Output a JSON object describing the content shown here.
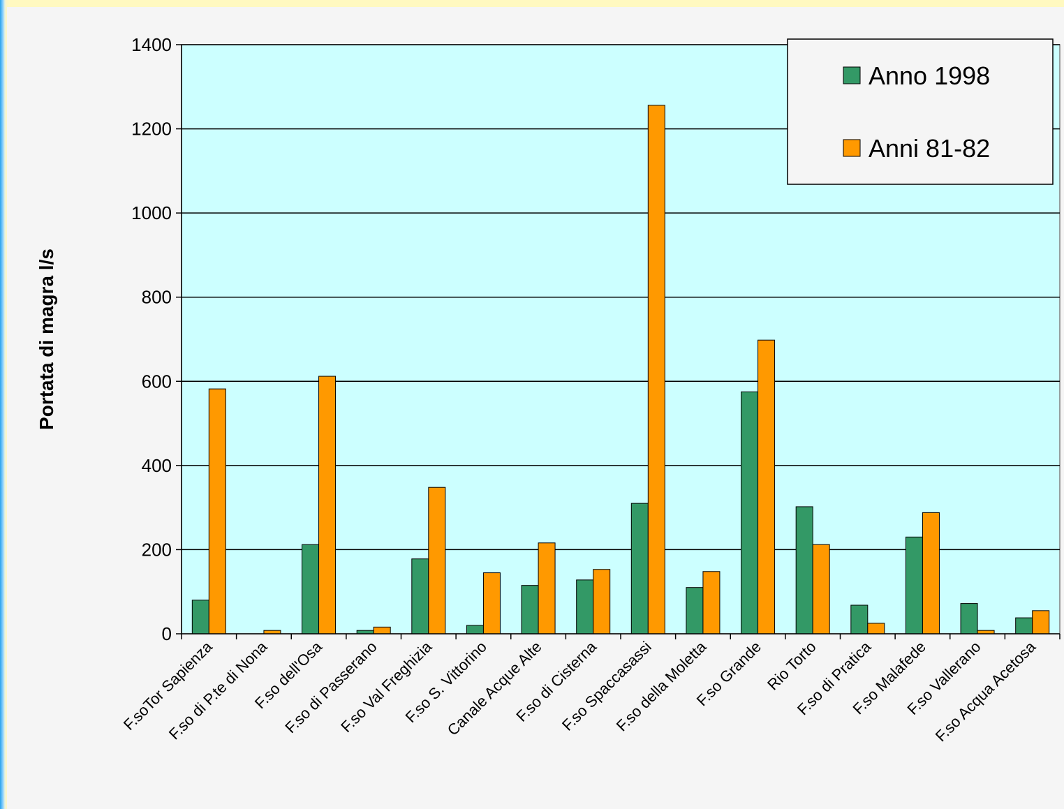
{
  "chart_data": {
    "type": "bar",
    "title": "",
    "xlabel": "",
    "ylabel": "Portata di magra l/s",
    "ylim": [
      0,
      1400
    ],
    "yticks": [
      0,
      200,
      400,
      600,
      800,
      1000,
      1200,
      1400
    ],
    "grid": true,
    "legend_position": "top-right",
    "categories": [
      "F.soTor Sapienza",
      "F.so di P.te di Nona",
      "F.so dell'Osa",
      "F.so di Passerano",
      "F.so Val Freghizia",
      "F.so S. Vittorino",
      "Canale Acque Alte",
      "F.so di Cisterna",
      "F.so Spaccasassi",
      "F.so della Moletta",
      "F.so Grande",
      "Rio Torto",
      "F.so di Pratica",
      "F.so Malafede",
      "F.so Vallerano",
      "F.so Acqua Acetosa"
    ],
    "series": [
      {
        "name": "Anno 1998",
        "color": "#339966",
        "values": [
          80,
          0,
          212,
          8,
          178,
          20,
          115,
          128,
          310,
          110,
          575,
          302,
          68,
          230,
          72,
          38
        ]
      },
      {
        "name": "Anni 81-82",
        "color": "#ff9900",
        "values": [
          582,
          8,
          612,
          16,
          348,
          145,
          216,
          153,
          1256,
          148,
          698,
          212,
          25,
          288,
          8,
          55
        ]
      }
    ],
    "plot_background": "#ccffff"
  }
}
